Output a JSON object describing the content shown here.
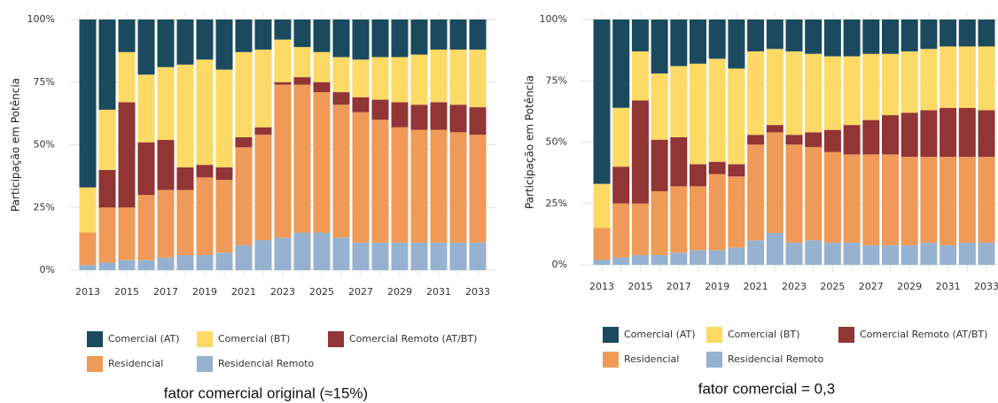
{
  "chart_data": [
    {
      "type": "stacked_bar",
      "y_label": "Participação em Potência",
      "caption": "fator comercial original (≈15%)",
      "categories": [
        "2013",
        null,
        "2015",
        null,
        "2017",
        null,
        "2019",
        null,
        "2021",
        null,
        "2023",
        null,
        "2025",
        null,
        "2027",
        null,
        "2029",
        null,
        "2031",
        null,
        "2033"
      ],
      "ylim": [
        0,
        100
      ],
      "yticks": [
        {
          "value": 0,
          "label": "0%"
        },
        {
          "value": 25,
          "label": "25%"
        },
        {
          "value": 50,
          "label": "50%"
        },
        {
          "value": 75,
          "label": "75%"
        },
        {
          "value": 100,
          "label": "100%"
        }
      ],
      "grid": true,
      "series": [
        {
          "name": "Comercial (AT)",
          "color": "#1b4a5f",
          "values": [
            67,
            36,
            13,
            22,
            19,
            18,
            16,
            20,
            13,
            12,
            8,
            11,
            13,
            15,
            16,
            15,
            15,
            14,
            12,
            12,
            12
          ]
        },
        {
          "name": "Comercial (BT)",
          "color": "#fdd966",
          "values": [
            18,
            24,
            20,
            27,
            29,
            41,
            42,
            39,
            34,
            31,
            17,
            12,
            12,
            14,
            15,
            17,
            18,
            20,
            21,
            22,
            23
          ]
        },
        {
          "name": "Comercial Remoto (AT/BT)",
          "color": "#923535",
          "values": [
            0,
            15,
            42,
            21,
            20,
            9,
            5,
            5,
            4,
            3,
            1,
            3,
            4,
            5,
            6,
            8,
            10,
            10,
            11,
            11,
            11
          ]
        },
        {
          "name": "Residencial",
          "color": "#ef9a58",
          "values": [
            13,
            22,
            21,
            26,
            27,
            26,
            31,
            29,
            39,
            42,
            61,
            59,
            56,
            53,
            52,
            49,
            46,
            45,
            45,
            44,
            43
          ]
        },
        {
          "name": "Residencial Remoto",
          "color": "#96b2d0",
          "values": [
            2,
            3,
            4,
            4,
            5,
            6,
            6,
            7,
            10,
            12,
            13,
            15,
            15,
            13,
            11,
            11,
            11,
            11,
            11,
            11,
            11
          ]
        }
      ]
    },
    {
      "type": "stacked_bar",
      "y_label": "Participação em Potência",
      "caption": "fator comercial = 0,3",
      "categories": [
        "2013",
        null,
        "2015",
        null,
        "2017",
        null,
        "2019",
        null,
        "2021",
        null,
        "2023",
        null,
        "2025",
        null,
        "2027",
        null,
        "2029",
        null,
        "2031",
        null,
        "2033"
      ],
      "ylim": [
        0,
        100
      ],
      "yticks": [
        {
          "value": 0,
          "label": "0%"
        },
        {
          "value": 25,
          "label": "25%"
        },
        {
          "value": 50,
          "label": "50%"
        },
        {
          "value": 75,
          "label": "75%"
        },
        {
          "value": 100,
          "label": "100%"
        }
      ],
      "grid": true,
      "series": [
        {
          "name": "Comercial (AT)",
          "color": "#1b4a5f",
          "values": [
            67,
            36,
            13,
            22,
            19,
            18,
            16,
            20,
            13,
            12,
            13,
            14,
            15,
            15,
            14,
            14,
            13,
            12,
            11,
            11,
            11
          ]
        },
        {
          "name": "Comercial (BT)",
          "color": "#fdd966",
          "values": [
            18,
            24,
            20,
            27,
            29,
            41,
            42,
            39,
            34,
            31,
            34,
            32,
            30,
            28,
            27,
            25,
            25,
            25,
            25,
            25,
            26
          ]
        },
        {
          "name": "Comercial Remoto (AT/BT)",
          "color": "#923535",
          "values": [
            0,
            15,
            42,
            21,
            20,
            9,
            5,
            5,
            4,
            3,
            4,
            6,
            9,
            12,
            14,
            16,
            18,
            19,
            20,
            20,
            19
          ]
        },
        {
          "name": "Residencial",
          "color": "#ef9a58",
          "values": [
            13,
            22,
            21,
            26,
            27,
            26,
            31,
            29,
            39,
            41,
            40,
            38,
            37,
            36,
            37,
            37,
            36,
            35,
            36,
            35,
            35
          ]
        },
        {
          "name": "Residencial Remoto",
          "color": "#96b2d0",
          "values": [
            2,
            3,
            4,
            4,
            5,
            6,
            6,
            7,
            10,
            13,
            9,
            10,
            9,
            9,
            8,
            8,
            8,
            9,
            8,
            9,
            9
          ]
        }
      ]
    }
  ]
}
